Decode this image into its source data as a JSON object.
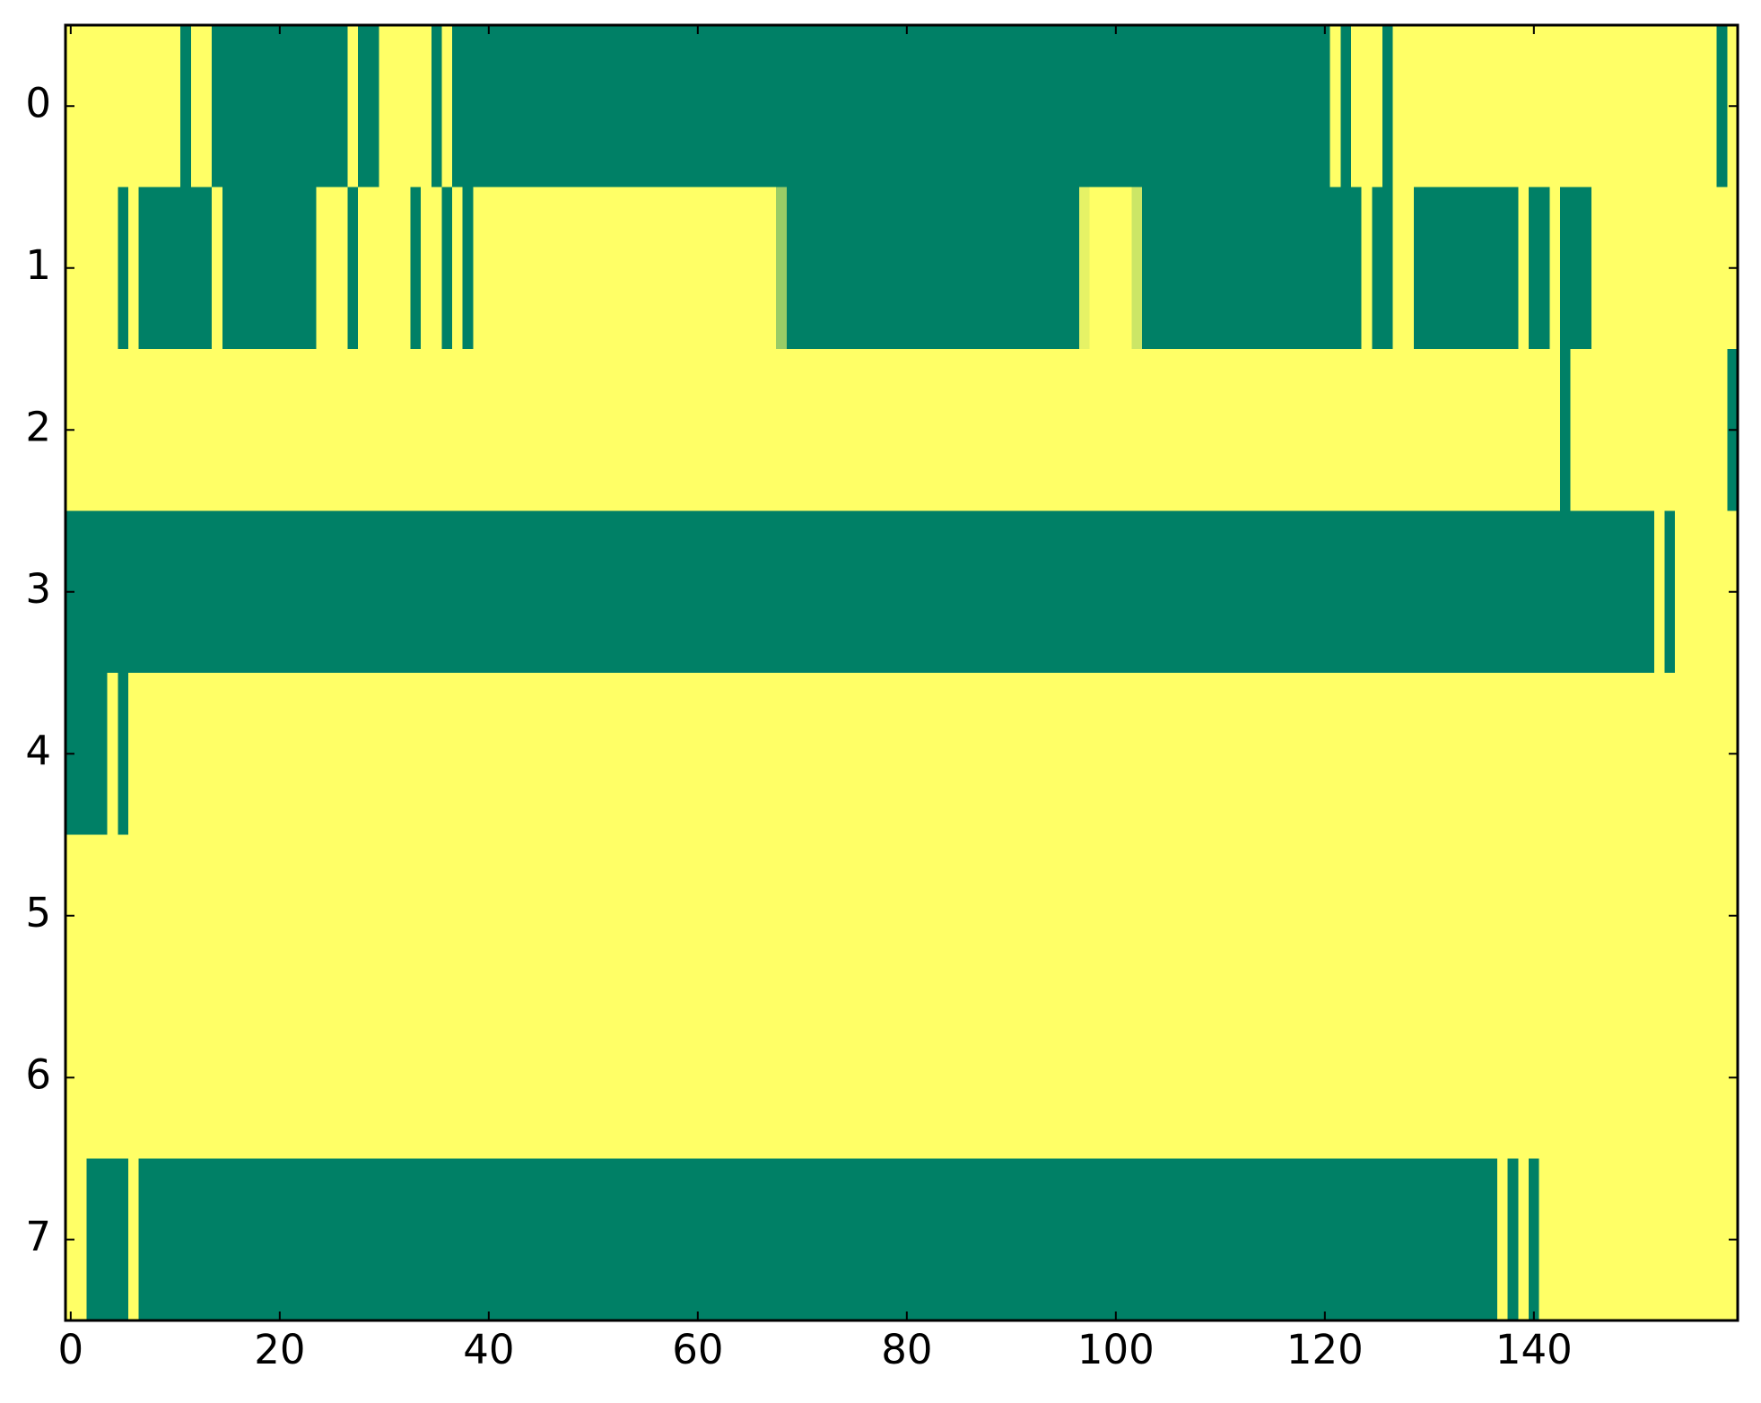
{
  "chart_data": {
    "type": "heatmap",
    "colormap": "summer",
    "zlim": [
      0,
      1
    ],
    "xlim": [
      -0.5,
      159.5
    ],
    "ylim": [
      7.5,
      -0.5
    ],
    "xticks": [
      0,
      20,
      40,
      60,
      80,
      100,
      120,
      140
    ],
    "yticks": [
      0,
      1,
      2,
      3,
      4,
      5,
      6,
      7
    ],
    "z": [
      [
        1,
        1,
        1,
        1,
        1,
        1,
        1,
        1,
        1,
        1,
        1,
        0,
        1,
        1,
        0,
        0,
        0,
        0,
        0,
        0,
        0,
        0,
        0,
        0,
        0,
        0,
        0,
        1,
        0,
        0,
        1,
        1,
        1,
        1,
        1,
        0,
        1,
        0,
        0,
        0,
        0,
        0,
        0,
        0,
        0,
        0,
        0,
        0,
        0,
        0,
        0,
        0,
        0,
        0,
        0,
        0,
        0,
        0,
        0,
        0,
        0,
        0,
        0,
        0,
        0,
        0,
        0,
        0,
        0,
        0,
        0,
        0,
        0,
        0,
        0,
        0,
        0,
        0,
        0,
        0,
        0,
        0,
        0,
        0,
        0,
        0,
        0,
        0,
        0,
        0,
        0,
        0,
        0,
        0,
        0,
        0,
        0,
        0,
        0,
        0,
        0,
        0,
        0,
        0,
        0,
        0,
        0,
        0,
        0,
        0,
        0,
        0,
        0,
        0,
        0,
        0,
        0,
        0,
        0,
        0,
        0,
        1,
        0,
        1,
        1,
        1,
        0,
        1,
        1,
        1,
        1,
        1,
        1,
        1,
        1,
        1,
        1,
        1,
        1,
        1,
        1,
        1,
        1,
        1,
        1,
        1,
        1,
        1,
        1,
        1,
        1,
        1,
        1,
        1,
        1,
        1,
        1,
        1,
        0,
        1
      ],
      [
        1,
        1,
        1,
        1,
        1,
        0,
        1,
        0,
        0,
        0,
        0,
        0,
        0,
        0,
        1,
        0,
        0,
        0,
        0,
        0,
        0,
        0,
        0,
        0,
        1,
        1,
        1,
        0,
        1,
        1,
        1,
        1,
        1,
        0,
        1,
        1,
        0,
        1,
        0,
        1,
        1,
        1,
        1,
        1,
        1,
        1,
        1,
        1,
        1,
        1,
        1,
        1,
        1,
        1,
        1,
        1,
        1,
        1,
        1,
        1,
        1,
        1,
        1,
        1,
        1,
        1,
        1,
        1,
        0.6,
        0,
        0,
        0,
        0,
        0,
        0,
        0,
        0,
        0,
        0,
        0,
        0,
        0,
        0,
        0,
        0,
        0,
        0,
        0,
        0,
        0,
        0,
        0,
        0,
        0,
        0,
        0,
        0,
        0.9,
        1,
        1,
        1,
        1,
        0.8,
        0,
        0,
        0,
        0,
        0,
        0,
        0,
        0,
        0,
        0,
        0,
        0,
        0,
        0,
        0,
        0,
        0,
        0,
        0,
        0,
        0,
        1,
        0,
        0,
        1,
        1,
        0,
        0,
        0,
        0,
        0,
        0,
        0,
        0,
        0,
        0,
        1,
        0,
        0,
        1,
        0,
        0,
        0,
        1,
        1,
        1,
        1,
        1,
        1,
        1,
        1,
        1,
        1,
        1,
        1,
        1,
        1
      ],
      [
        1,
        1,
        1,
        1,
        1,
        1,
        1,
        1,
        1,
        1,
        1,
        1,
        1,
        1,
        1,
        1,
        1,
        1,
        1,
        1,
        1,
        1,
        1,
        1,
        1,
        1,
        1,
        1,
        1,
        1,
        1,
        1,
        1,
        1,
        1,
        1,
        1,
        1,
        1,
        1,
        1,
        1,
        1,
        1,
        1,
        1,
        1,
        1,
        1,
        1,
        1,
        1,
        1,
        1,
        1,
        1,
        1,
        1,
        1,
        1,
        1,
        1,
        1,
        1,
        1,
        1,
        1,
        1,
        1,
        1,
        1,
        1,
        1,
        1,
        1,
        1,
        1,
        1,
        1,
        1,
        1,
        1,
        1,
        1,
        1,
        1,
        1,
        1,
        1,
        1,
        1,
        1,
        1,
        1,
        1,
        1,
        1,
        1,
        1,
        1,
        1,
        1,
        1,
        1,
        1,
        1,
        1,
        1,
        1,
        1,
        1,
        1,
        1,
        1,
        1,
        1,
        1,
        1,
        1,
        1,
        1,
        1,
        1,
        1,
        1,
        1,
        1,
        1,
        1,
        1,
        1,
        1,
        1,
        1,
        1,
        1,
        1,
        1,
        1,
        1,
        1,
        1,
        1,
        0,
        1,
        1,
        1,
        1,
        1,
        1,
        1,
        1,
        1,
        1,
        1,
        1,
        1,
        1,
        1,
        0
      ],
      [
        0,
        0,
        0,
        0,
        0,
        0,
        0,
        0,
        0,
        0,
        0,
        0,
        0,
        0,
        0,
        0,
        0,
        0,
        0,
        0,
        0,
        0,
        0,
        0,
        0,
        0,
        0,
        0,
        0,
        0,
        0,
        0,
        0,
        0,
        0,
        0,
        0,
        0,
        0,
        0,
        0,
        0,
        0,
        0,
        0,
        0,
        0,
        0,
        0,
        0,
        0,
        0,
        0,
        0,
        0,
        0,
        0,
        0,
        0,
        0,
        0,
        0,
        0,
        0,
        0,
        0,
        0,
        0,
        0,
        0,
        0,
        0,
        0,
        0,
        0,
        0,
        0,
        0,
        0,
        0,
        0,
        0,
        0,
        0,
        0,
        0,
        0,
        0,
        0,
        0,
        0,
        0,
        0,
        0,
        0,
        0,
        0,
        0,
        0,
        0,
        0,
        0,
        0,
        0,
        0,
        0,
        0,
        0,
        0,
        0,
        0,
        0,
        0,
        0,
        0,
        0,
        0,
        0,
        0,
        0,
        0,
        0,
        0,
        0,
        0,
        0,
        0,
        0,
        0,
        0,
        0,
        0,
        0,
        0,
        0,
        0,
        0,
        0,
        0,
        0,
        0,
        0,
        0,
        0,
        0,
        0,
        0,
        0,
        0,
        0,
        0,
        0,
        1,
        0,
        1,
        1,
        1,
        1,
        1,
        1
      ],
      [
        0,
        0,
        0,
        0,
        1,
        0,
        1,
        1,
        1,
        1,
        1,
        1,
        1,
        1,
        1,
        1,
        1,
        1,
        1,
        1,
        1,
        1,
        1,
        1,
        1,
        1,
        1,
        1,
        1,
        1,
        1,
        1,
        1,
        1,
        1,
        1,
        1,
        1,
        1,
        1,
        1,
        1,
        1,
        1,
        1,
        1,
        1,
        1,
        1,
        1,
        1,
        1,
        1,
        1,
        1,
        1,
        1,
        1,
        1,
        1,
        1,
        1,
        1,
        1,
        1,
        1,
        1,
        1,
        1,
        1,
        1,
        1,
        1,
        1,
        1,
        1,
        1,
        1,
        1,
        1,
        1,
        1,
        1,
        1,
        1,
        1,
        1,
        1,
        1,
        1,
        1,
        1,
        1,
        1,
        1,
        1,
        1,
        1,
        1,
        1,
        1,
        1,
        1,
        1,
        1,
        1,
        1,
        1,
        1,
        1,
        1,
        1,
        1,
        1,
        1,
        1,
        1,
        1,
        1,
        1,
        1,
        1,
        1,
        1,
        1,
        1,
        1,
        1,
        1,
        1,
        1,
        1,
        1,
        1,
        1,
        1,
        1,
        1,
        1,
        1,
        1,
        1,
        1,
        1,
        1,
        1,
        1,
        1,
        1,
        1,
        1,
        1,
        1,
        1,
        1,
        1,
        1,
        1,
        1,
        1
      ],
      [
        1,
        1,
        1,
        1,
        1,
        1,
        1,
        1,
        1,
        1,
        1,
        1,
        1,
        1,
        1,
        1,
        1,
        1,
        1,
        1,
        1,
        1,
        1,
        1,
        1,
        1,
        1,
        1,
        1,
        1,
        1,
        1,
        1,
        1,
        1,
        1,
        1,
        1,
        1,
        1,
        1,
        1,
        1,
        1,
        1,
        1,
        1,
        1,
        1,
        1,
        1,
        1,
        1,
        1,
        1,
        1,
        1,
        1,
        1,
        1,
        1,
        1,
        1,
        1,
        1,
        1,
        1,
        1,
        1,
        1,
        1,
        1,
        1,
        1,
        1,
        1,
        1,
        1,
        1,
        1,
        1,
        1,
        1,
        1,
        1,
        1,
        1,
        1,
        1,
        1,
        1,
        1,
        1,
        1,
        1,
        1,
        1,
        1,
        1,
        1,
        1,
        1,
        1,
        1,
        1,
        1,
        1,
        1,
        1,
        1,
        1,
        1,
        1,
        1,
        1,
        1,
        1,
        1,
        1,
        1,
        1,
        1,
        1,
        1,
        1,
        1,
        1,
        1,
        1,
        1,
        1,
        1,
        1,
        1,
        1,
        1,
        1,
        1,
        1,
        1,
        1,
        1,
        1,
        1,
        1,
        1,
        1,
        1,
        1,
        1,
        1,
        1,
        1,
        1,
        1,
        1,
        1,
        1,
        1,
        1
      ],
      [
        1,
        1,
        1,
        1,
        1,
        1,
        1,
        1,
        1,
        1,
        1,
        1,
        1,
        1,
        1,
        1,
        1,
        1,
        1,
        1,
        1,
        1,
        1,
        1,
        1,
        1,
        1,
        1,
        1,
        1,
        1,
        1,
        1,
        1,
        1,
        1,
        1,
        1,
        1,
        1,
        1,
        1,
        1,
        1,
        1,
        1,
        1,
        1,
        1,
        1,
        1,
        1,
        1,
        1,
        1,
        1,
        1,
        1,
        1,
        1,
        1,
        1,
        1,
        1,
        1,
        1,
        1,
        1,
        1,
        1,
        1,
        1,
        1,
        1,
        1,
        1,
        1,
        1,
        1,
        1,
        1,
        1,
        1,
        1,
        1,
        1,
        1,
        1,
        1,
        1,
        1,
        1,
        1,
        1,
        1,
        1,
        1,
        1,
        1,
        1,
        1,
        1,
        1,
        1,
        1,
        1,
        1,
        1,
        1,
        1,
        1,
        1,
        1,
        1,
        1,
        1,
        1,
        1,
        1,
        1,
        1,
        1,
        1,
        1,
        1,
        1,
        1,
        1,
        1,
        1,
        1,
        1,
        1,
        1,
        1,
        1,
        1,
        1,
        1,
        1,
        1,
        1,
        1,
        1,
        1,
        1,
        1,
        1,
        1,
        1,
        1,
        1,
        1,
        1,
        1,
        1,
        1,
        1,
        1,
        1
      ],
      [
        1,
        1,
        0,
        0,
        0,
        0,
        1,
        0,
        0,
        0,
        0,
        0,
        0,
        0,
        0,
        0,
        0,
        0,
        0,
        0,
        0,
        0,
        0,
        0,
        0,
        0,
        0,
        0,
        0,
        0,
        0,
        0,
        0,
        0,
        0,
        0,
        0,
        0,
        0,
        0,
        0,
        0,
        0,
        0,
        0,
        0,
        0,
        0,
        0,
        0,
        0,
        0,
        0,
        0,
        0,
        0,
        0,
        0,
        0,
        0,
        0,
        0,
        0,
        0,
        0,
        0,
        0,
        0,
        0,
        0,
        0,
        0,
        0,
        0,
        0,
        0,
        0,
        0,
        0,
        0,
        0,
        0,
        0,
        0,
        0,
        0,
        0,
        0,
        0,
        0,
        0,
        0,
        0,
        0,
        0,
        0,
        0,
        0,
        0,
        0,
        0,
        0,
        0,
        0,
        0,
        0,
        0,
        0,
        0,
        0,
        0,
        0,
        0,
        0,
        0,
        0,
        0,
        0,
        0,
        0,
        0,
        0,
        0,
        0,
        0,
        0,
        0,
        0,
        0,
        0,
        0,
        0,
        0,
        0,
        0,
        0,
        0,
        1,
        0,
        1,
        0,
        1,
        1,
        1,
        1,
        1,
        1,
        1,
        1,
        1,
        1,
        1,
        1,
        1,
        1,
        1,
        1,
        1,
        1,
        1
      ]
    ]
  }
}
